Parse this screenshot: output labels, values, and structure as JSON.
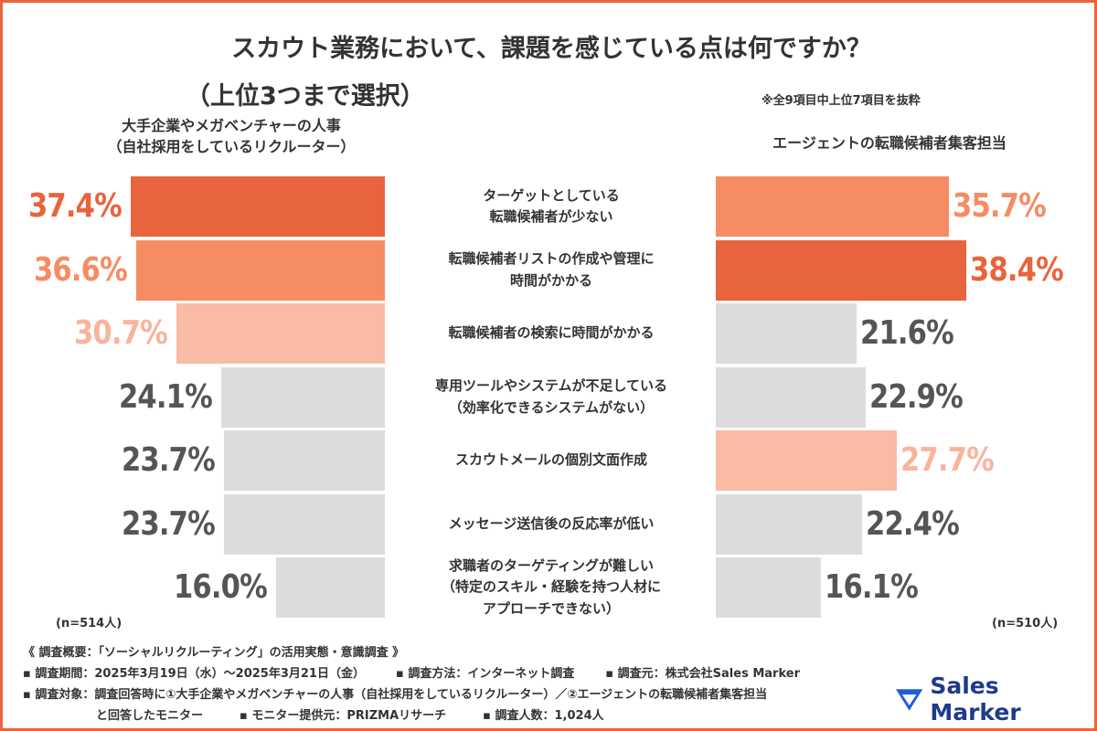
{
  "chart_data": {
    "type": "butterfly",
    "title": "スカウト業務において、課題を感じている点は何ですか？",
    "subtitle": "（上位3つまで選択）",
    "note": "※全9項目中上位7項目を抜粋",
    "categories": [
      "ターゲットとしている\n転職候補者が少ない",
      "転職候補者リストの作成や管理に\n時間がかかる",
      "転職候補者の検索に時間がかかる",
      "専用ツールやシステムが不足している\n（効率化できるシステムがない）",
      "スカウトメールの個別文面作成",
      "メッセージ送信後の反応率が低い",
      "求職者のターゲティングが難しい\n（特定のスキル・経験を持つ人材に\nアプローチできない）"
    ],
    "series": [
      {
        "name": "大手企業やメガベンチャーの人事\n（自社採用をしているリクルーター）",
        "sample": "(n=514人)",
        "values": [
          37.4,
          36.6,
          30.7,
          24.1,
          23.7,
          23.7,
          16.0
        ],
        "value_labels": [
          "37.4%",
          "36.6%",
          "30.7%",
          "24.1%",
          "23.7%",
          "23.7%",
          "16.0%"
        ],
        "colors": [
          "#e8643c",
          "#f68c64",
          "#f9bba5",
          "#dcdcde",
          "#dcdcde",
          "#dcdcde",
          "#dcdcde"
        ],
        "label_colors": [
          "#e8643c",
          "#f68c64",
          "#f9b49c",
          "#555555",
          "#555555",
          "#555555",
          "#555555"
        ]
      },
      {
        "name": "エージェントの転職候補者集客担当",
        "sample": "(n=510人)",
        "values": [
          35.7,
          38.4,
          21.6,
          22.9,
          27.7,
          22.4,
          16.1
        ],
        "value_labels": [
          "35.7%",
          "38.4%",
          "21.6%",
          "22.9%",
          "27.7%",
          "22.4%",
          "16.1%"
        ],
        "colors": [
          "#f68c64",
          "#e8643c",
          "#dcdcde",
          "#dcdcde",
          "#f9bba5",
          "#dcdcde",
          "#dcdcde"
        ],
        "label_colors": [
          "#f68c64",
          "#e8643c",
          "#555555",
          "#555555",
          "#f9b49c",
          "#555555",
          "#555555"
        ]
      }
    ]
  },
  "footer": {
    "rows": [
      [
        "《 調査概要：「ソーシャルリクルーティング」の活用実態・意識調査 》"
      ],
      [
        "▪ 調査期間：2025年3月19日（水）～2025年3月21日（金）",
        "▪ 調査方法：インターネット調査",
        "▪ 調査元：株式会社Sales Marker"
      ],
      [
        "▪ 調査対象：調査回答時に①大手企業やメガベンチャーの人事（自社採用をしているリクルーター）／②エージェントの転職候補者集客担当"
      ],
      [
        "と回答したモニター",
        "▪ モニター提供元：PRIZMAリサーチ",
        "▪ 調査人数：1,024人"
      ]
    ]
  },
  "logo": "Sales Marker"
}
